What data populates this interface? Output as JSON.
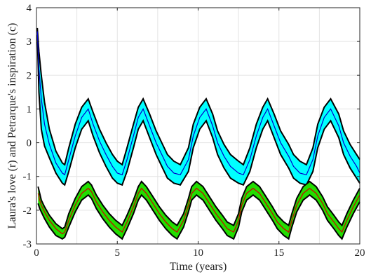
{
  "chart_data": {
    "type": "line",
    "title": "",
    "xlabel": "Time (years)",
    "ylabel": "Laura's love (r) and Petrarque's inspiration (c)",
    "xlim": [
      0,
      20
    ],
    "ylim": [
      -3,
      4
    ],
    "xticks": [
      "0",
      "5",
      "10",
      "15",
      "20"
    ],
    "yticks": [
      "-3",
      "-2",
      "-1",
      "0",
      "1",
      "2",
      "3",
      "4"
    ],
    "grid": true,
    "period_years": 3.1,
    "series": [
      {
        "color": "#00ffff",
        "edge": "#000000",
        "center_color": "#0000cc",
        "x": [
          0.05,
          0.15,
          0.3,
          0.5,
          0.8,
          1.2,
          1.6,
          1.75,
          2.0,
          2.4,
          2.8,
          3.2,
          3.5,
          3.9,
          4.3,
          4.7,
          5.0,
          5.3,
          5.6,
          6.0,
          6.3,
          6.6,
          7.0,
          7.4,
          7.8,
          8.1,
          8.5,
          8.9,
          9.4,
          9.7,
          10.1,
          10.5,
          10.9,
          11.2,
          11.6,
          12.0,
          12.5,
          12.8,
          13.2,
          13.6,
          14.0,
          14.3,
          14.7,
          15.1,
          15.6,
          15.9,
          16.3,
          16.7,
          17.1,
          17.4,
          17.8,
          18.2,
          18.7,
          19.0,
          19.4,
          19.8,
          20.0
        ],
        "center": [
          3.3,
          2.2,
          1.3,
          0.55,
          -0.05,
          -0.6,
          -0.9,
          -0.95,
          -0.5,
          0.2,
          0.75,
          1.0,
          0.55,
          0.05,
          -0.35,
          -0.7,
          -0.9,
          -0.95,
          -0.5,
          0.2,
          0.75,
          1.0,
          0.5,
          0.0,
          -0.4,
          -0.7,
          -0.9,
          -0.95,
          -0.5,
          0.2,
          0.75,
          1.0,
          0.5,
          0.0,
          -0.4,
          -0.7,
          -0.9,
          -0.95,
          -0.5,
          0.2,
          0.75,
          1.0,
          0.5,
          0.0,
          -0.4,
          -0.7,
          -0.9,
          -0.95,
          -0.5,
          0.2,
          0.75,
          1.0,
          0.5,
          0.0,
          -0.4,
          -0.7,
          -0.9
        ],
        "upper": [
          3.4,
          2.7,
          2.0,
          1.2,
          0.4,
          -0.25,
          -0.6,
          -0.65,
          -0.15,
          0.55,
          1.05,
          1.3,
          0.9,
          0.4,
          0.0,
          -0.35,
          -0.55,
          -0.65,
          -0.15,
          0.55,
          1.05,
          1.3,
          0.85,
          0.35,
          -0.05,
          -0.35,
          -0.55,
          -0.65,
          -0.15,
          0.55,
          1.05,
          1.3,
          0.85,
          0.35,
          -0.05,
          -0.35,
          -0.55,
          -0.65,
          -0.15,
          0.55,
          1.05,
          1.3,
          0.85,
          0.35,
          -0.05,
          -0.35,
          -0.55,
          -0.65,
          -0.15,
          0.55,
          1.05,
          1.3,
          0.85,
          0.35,
          -0.05,
          -0.35,
          -0.5
        ],
        "lower": [
          3.2,
          1.5,
          0.4,
          -0.1,
          -0.45,
          -0.9,
          -1.2,
          -1.25,
          -0.85,
          -0.15,
          0.4,
          0.65,
          0.2,
          -0.3,
          -0.7,
          -1.05,
          -1.2,
          -1.25,
          -0.85,
          -0.15,
          0.4,
          0.65,
          0.15,
          -0.35,
          -0.75,
          -1.05,
          -1.2,
          -1.25,
          -0.85,
          -0.15,
          0.4,
          0.65,
          0.15,
          -0.35,
          -0.75,
          -1.05,
          -1.2,
          -1.25,
          -0.85,
          -0.15,
          0.4,
          0.65,
          0.15,
          -0.35,
          -0.75,
          -1.05,
          -1.2,
          -1.25,
          -0.85,
          -0.15,
          0.4,
          0.65,
          0.15,
          -0.35,
          -0.75,
          -1.05,
          -1.2
        ]
      },
      {
        "color": "#22dd00",
        "edge": "#000000",
        "center_color": "#cc0000",
        "x": [
          0.1,
          0.2,
          0.3,
          0.5,
          0.8,
          1.2,
          1.6,
          1.75,
          2.0,
          2.4,
          2.8,
          3.2,
          3.4,
          3.7,
          4.1,
          4.5,
          4.9,
          5.3,
          5.6,
          6.0,
          6.3,
          6.5,
          6.8,
          7.2,
          7.6,
          8.0,
          8.4,
          8.7,
          9.1,
          9.4,
          9.6,
          9.9,
          10.3,
          10.7,
          11.1,
          11.5,
          11.8,
          12.2,
          12.5,
          12.7,
          13.0,
          13.4,
          13.8,
          14.2,
          14.6,
          14.9,
          15.3,
          15.6,
          15.8,
          16.1,
          16.5,
          16.9,
          17.3,
          17.7,
          18.0,
          18.4,
          18.7,
          18.9,
          19.2,
          19.6,
          20.0
        ],
        "center": [
          -1.5,
          -1.7,
          -1.85,
          -2.05,
          -2.3,
          -2.55,
          -2.7,
          -2.65,
          -2.3,
          -1.85,
          -1.5,
          -1.35,
          -1.45,
          -1.75,
          -2.05,
          -2.3,
          -2.5,
          -2.65,
          -2.35,
          -1.9,
          -1.5,
          -1.35,
          -1.5,
          -1.8,
          -2.1,
          -2.35,
          -2.55,
          -2.65,
          -2.3,
          -1.85,
          -1.5,
          -1.35,
          -1.5,
          -1.8,
          -2.1,
          -2.35,
          -2.55,
          -2.65,
          -2.3,
          -1.85,
          -1.5,
          -1.35,
          -1.5,
          -1.8,
          -2.1,
          -2.35,
          -2.55,
          -2.65,
          -2.3,
          -1.85,
          -1.5,
          -1.35,
          -1.5,
          -1.8,
          -2.1,
          -2.35,
          -2.55,
          -2.65,
          -2.3,
          -1.9,
          -1.55
        ],
        "upper": [
          -1.3,
          -1.5,
          -1.7,
          -1.9,
          -2.15,
          -2.4,
          -2.55,
          -2.5,
          -2.1,
          -1.65,
          -1.3,
          -1.15,
          -1.25,
          -1.55,
          -1.85,
          -2.1,
          -2.3,
          -2.45,
          -2.15,
          -1.7,
          -1.3,
          -1.15,
          -1.3,
          -1.6,
          -1.9,
          -2.15,
          -2.35,
          -2.45,
          -2.1,
          -1.65,
          -1.3,
          -1.15,
          -1.3,
          -1.6,
          -1.9,
          -2.15,
          -2.35,
          -2.45,
          -2.1,
          -1.65,
          -1.3,
          -1.15,
          -1.3,
          -1.6,
          -1.9,
          -2.15,
          -2.35,
          -2.45,
          -2.1,
          -1.65,
          -1.3,
          -1.15,
          -1.3,
          -1.6,
          -1.9,
          -2.15,
          -2.35,
          -2.45,
          -2.1,
          -1.7,
          -1.35
        ],
        "lower": [
          -1.8,
          -1.95,
          -2.05,
          -2.25,
          -2.5,
          -2.75,
          -2.85,
          -2.8,
          -2.5,
          -2.05,
          -1.7,
          -1.55,
          -1.65,
          -1.95,
          -2.25,
          -2.5,
          -2.7,
          -2.85,
          -2.55,
          -2.1,
          -1.7,
          -1.55,
          -1.7,
          -2.0,
          -2.3,
          -2.55,
          -2.75,
          -2.85,
          -2.5,
          -2.05,
          -1.7,
          -1.55,
          -1.7,
          -2.0,
          -2.3,
          -2.55,
          -2.75,
          -2.85,
          -2.5,
          -2.05,
          -1.7,
          -1.55,
          -1.7,
          -2.0,
          -2.3,
          -2.55,
          -2.75,
          -2.85,
          -2.5,
          -2.05,
          -1.7,
          -1.55,
          -1.7,
          -2.0,
          -2.3,
          -2.55,
          -2.75,
          -2.85,
          -2.5,
          -2.1,
          -1.75
        ]
      }
    ]
  }
}
